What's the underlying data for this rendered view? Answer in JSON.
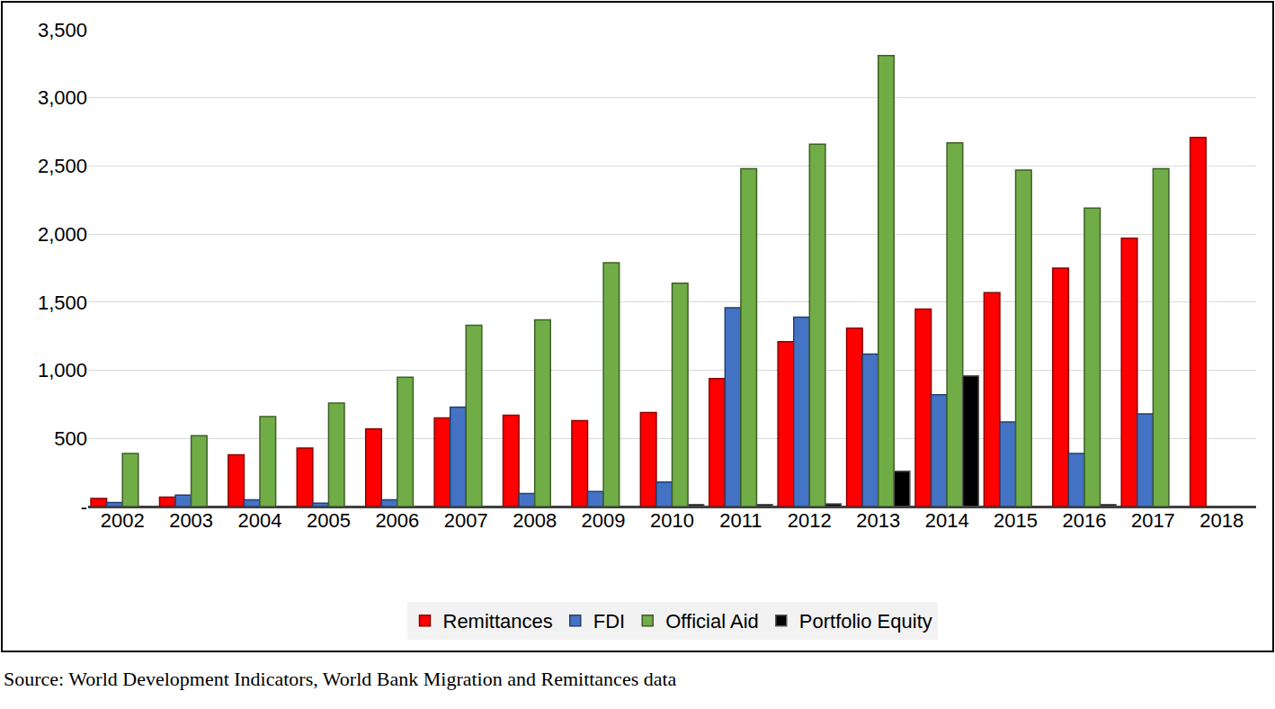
{
  "chart_data": {
    "type": "bar",
    "categories": [
      "2002",
      "2003",
      "2004",
      "2005",
      "2006",
      "2007",
      "2008",
      "2009",
      "2010",
      "2011",
      "2012",
      "2013",
      "2014",
      "2015",
      "2016",
      "2017",
      "2018"
    ],
    "series": [
      {
        "name": "Remittances",
        "color": "#ff0000",
        "values": [
          60,
          70,
          380,
          430,
          570,
          650,
          670,
          630,
          690,
          940,
          1210,
          1310,
          1450,
          1570,
          1750,
          1970,
          2710
        ]
      },
      {
        "name": "FDI",
        "color": "#4472c4",
        "values": [
          30,
          85,
          50,
          25,
          50,
          730,
          95,
          110,
          180,
          1460,
          1390,
          1120,
          820,
          620,
          390,
          680,
          null
        ]
      },
      {
        "name": "Official Aid",
        "color": "#70ad47",
        "values": [
          390,
          520,
          660,
          760,
          950,
          1330,
          1370,
          1790,
          1640,
          2480,
          2660,
          3310,
          2670,
          2470,
          2190,
          2480,
          null
        ]
      },
      {
        "name": "Portfolio Equity",
        "color": "#000000",
        "values": [
          null,
          null,
          null,
          null,
          null,
          null,
          null,
          null,
          15,
          15,
          20,
          260,
          960,
          null,
          15,
          null,
          null
        ]
      }
    ],
    "ylim": [
      0,
      3500
    ],
    "yticks": [
      {
        "value": 0,
        "label": "-"
      },
      500,
      {
        "value": 1000,
        "label": "1,000"
      },
      {
        "value": 1500,
        "label": "1,500"
      },
      {
        "value": 2000,
        "label": "2,000"
      },
      {
        "value": 2500,
        "label": "2,500"
      },
      {
        "value": 3000,
        "label": "3,000"
      },
      {
        "value": 3500,
        "label": "3,500"
      }
    ],
    "grid": true,
    "legend": "bottom",
    "annotations": [
      "Source: World Development Indicators, World Bank Migration and Remittances data"
    ]
  }
}
